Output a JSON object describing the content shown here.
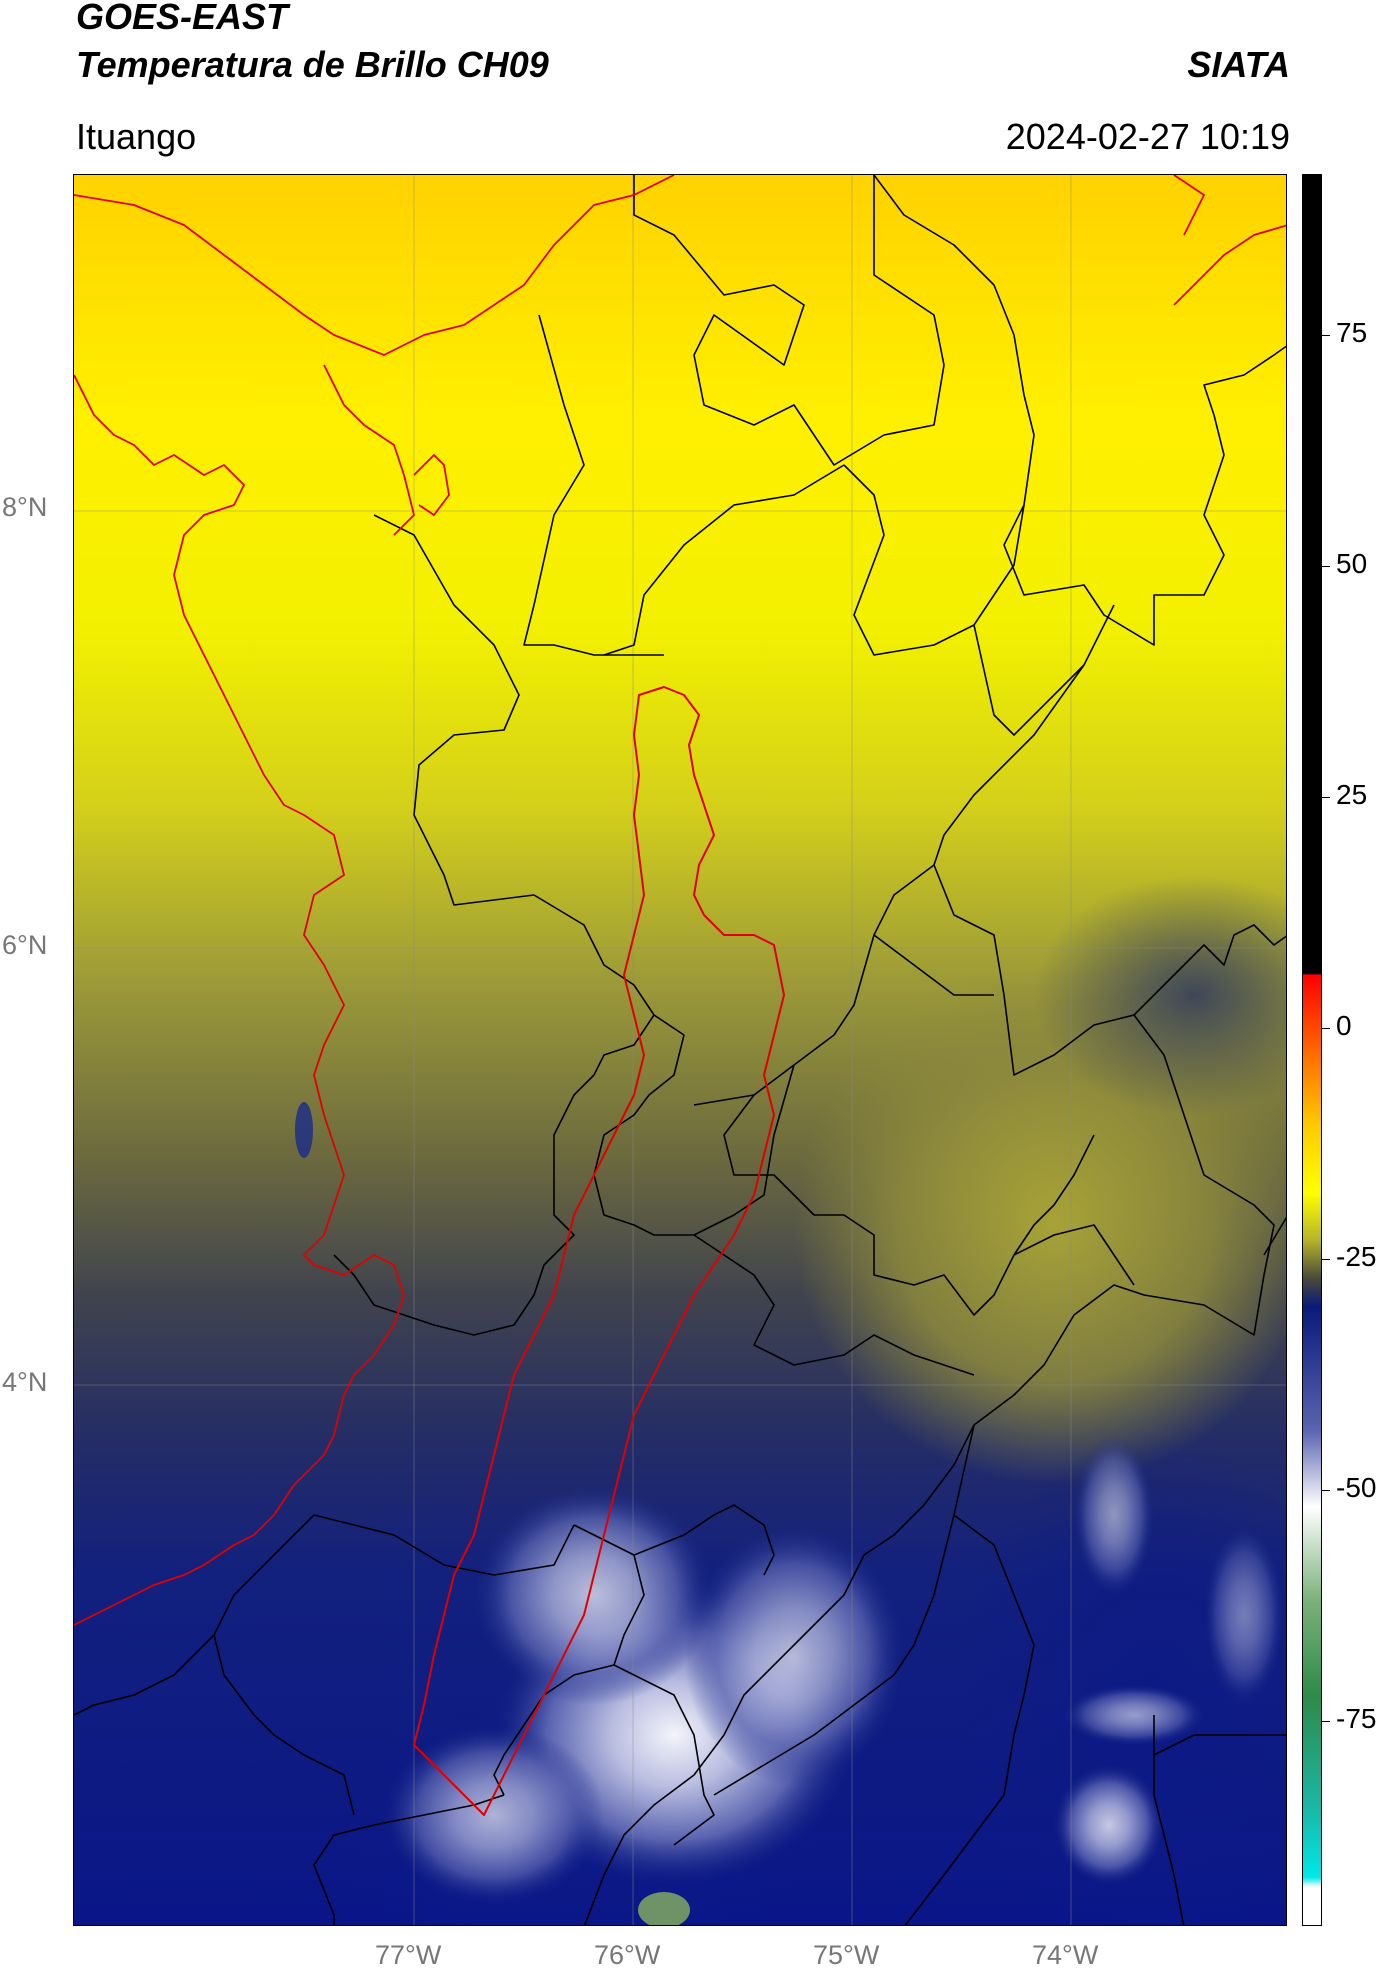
{
  "header": {
    "satellite": "GOES-EAST",
    "product": "Temperatura de Brillo CH09",
    "institution": "SIATA",
    "region": "Ituango",
    "datetime": "2024-02-27 10:19"
  },
  "map": {
    "lat_labels": [
      "8°N",
      "6°N",
      "4°N"
    ],
    "lon_labels": [
      "77°W",
      "76°W",
      "75°W",
      "74°W"
    ],
    "extent": {
      "lon_min": -78.55,
      "lon_max": -73.0,
      "lat_min": 2.55,
      "lat_max": 9.55
    }
  },
  "colorbar": {
    "ticks": [
      75,
      50,
      25,
      0,
      -25,
      -50,
      -75
    ],
    "tick_labels": [
      "75",
      "50",
      "25",
      "0",
      "-25",
      "-50",
      "-75"
    ],
    "range": [
      -92,
      92
    ],
    "stops": [
      {
        "value": 92,
        "color": "#000000"
      },
      {
        "value": 8,
        "color": "#000000"
      },
      {
        "value": 7.9,
        "color": "#ff0000"
      },
      {
        "value": 0,
        "color": "#ff6600"
      },
      {
        "value": -8,
        "color": "#ffcc00"
      },
      {
        "value": -15,
        "color": "#ffff00"
      },
      {
        "value": -20,
        "color": "#b5b52a"
      },
      {
        "value": -24,
        "color": "#4a4a3a"
      },
      {
        "value": -27,
        "color": "#0a1a7a"
      },
      {
        "value": -40,
        "color": "#5a64b0"
      },
      {
        "value": -48,
        "color": "#ffffff"
      },
      {
        "value": -58,
        "color": "#7ab07a"
      },
      {
        "value": -68,
        "color": "#2e8a4a"
      },
      {
        "value": -80,
        "color": "#1ab8a8"
      },
      {
        "value": -87,
        "color": "#00e8e8"
      },
      {
        "value": -88,
        "color": "#ffffff"
      },
      {
        "value": -92,
        "color": "#ffffff"
      }
    ]
  }
}
